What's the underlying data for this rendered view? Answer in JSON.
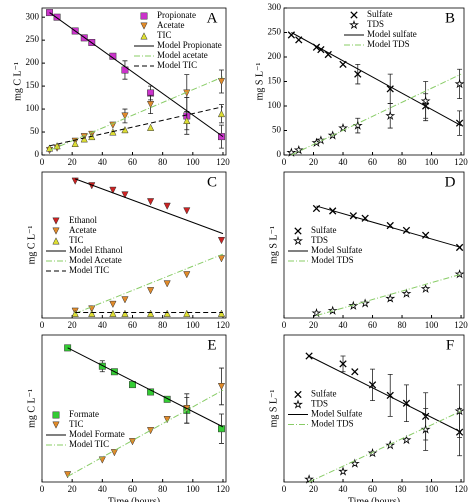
{
  "chart_data": [
    {
      "type": "scatter",
      "label": "A",
      "ylabel": "mg C L⁻¹",
      "xlim": [
        0,
        122
      ],
      "ylim": [
        0,
        320
      ],
      "xticks": [
        0,
        20,
        40,
        60,
        80,
        100,
        120
      ],
      "yticks": [
        0,
        50,
        100,
        150,
        200,
        250,
        300
      ],
      "legend": "upper right",
      "series": [
        {
          "name": "Propionate",
          "color": "#cc33cc",
          "marker": "square",
          "x": [
            5,
            10,
            22,
            28,
            33,
            47,
            55,
            72,
            96,
            119
          ],
          "values": [
            310,
            300,
            270,
            255,
            245,
            215,
            185,
            135,
            85,
            40
          ],
          "errors": [
            null,
            null,
            null,
            null,
            null,
            null,
            20,
            15,
            40,
            25
          ]
        },
        {
          "name": "Acetate",
          "color": "#e08a2a",
          "marker": "triangle-down",
          "x": [
            5,
            10,
            22,
            28,
            33,
            47,
            55,
            72,
            96,
            119
          ],
          "values": [
            10,
            15,
            30,
            40,
            45,
            65,
            85,
            110,
            135,
            160
          ],
          "errors": [
            null,
            null,
            null,
            null,
            null,
            null,
            15,
            20,
            40,
            25
          ]
        },
        {
          "name": "TIC",
          "color": "#dddd33",
          "marker": "triangle-up",
          "x": [
            5,
            10,
            22,
            28,
            33,
            47,
            55,
            72,
            96,
            119
          ],
          "values": [
            15,
            20,
            25,
            35,
            40,
            50,
            55,
            60,
            75,
            90
          ],
          "errors": [
            null,
            null,
            null,
            null,
            null,
            null,
            null,
            null,
            20,
            20
          ]
        },
        {
          "name": "Model Propionate",
          "color": "#000000",
          "line": "solid",
          "x": [
            5,
            120
          ],
          "values": [
            310,
            40
          ]
        },
        {
          "name": "Model acetate",
          "color": "#88cc66",
          "line": "dashdot",
          "x": [
            5,
            120
          ],
          "values": [
            10,
            170
          ]
        },
        {
          "name": "Model TIC",
          "color": "#000000",
          "line": "dashed",
          "x": [
            5,
            120
          ],
          "values": [
            20,
            105
          ]
        }
      ]
    },
    {
      "type": "scatter",
      "label": "B",
      "ylabel": "mg S L⁻¹",
      "xlim": [
        0,
        122
      ],
      "ylim": [
        0,
        300
      ],
      "xticks": [
        0,
        20,
        40,
        60,
        80,
        100,
        120
      ],
      "yticks": [
        0,
        50,
        100,
        150,
        200,
        250,
        300
      ],
      "legend": "upper center",
      "series": [
        {
          "name": "Sulfate",
          "color": "#000000",
          "marker": "x",
          "x": [
            5,
            10,
            22,
            25,
            30,
            40,
            50,
            72,
            96,
            119
          ],
          "values": [
            245,
            235,
            220,
            215,
            205,
            185,
            165,
            135,
            100,
            65
          ],
          "errors": [
            null,
            null,
            null,
            null,
            null,
            null,
            20,
            30,
            25,
            25
          ]
        },
        {
          "name": "TDS",
          "color": "#000000",
          "marker": "star",
          "x": [
            5,
            10,
            22,
            25,
            33,
            40,
            50,
            72,
            96,
            119
          ],
          "values": [
            5,
            10,
            25,
            30,
            40,
            55,
            60,
            80,
            110,
            145
          ],
          "errors": [
            null,
            null,
            null,
            null,
            null,
            null,
            15,
            25,
            40,
            30
          ]
        },
        {
          "name": "Model sulfate",
          "color": "#000000",
          "line": "solid",
          "x": [
            5,
            120
          ],
          "values": [
            250,
            60
          ]
        },
        {
          "name": "Model TDS",
          "color": "#88cc66",
          "line": "dashdot",
          "x": [
            5,
            120
          ],
          "values": [
            0,
            165
          ]
        }
      ]
    },
    {
      "type": "scatter",
      "label": "C",
      "ylabel": "mg C L⁻¹",
      "xlim": [
        0,
        122
      ],
      "ylim": [
        0,
        320
      ],
      "xticks": [
        0,
        20,
        40,
        60,
        80,
        100,
        120
      ],
      "legend": "center left",
      "series": [
        {
          "name": "Ethanol",
          "color": "#cc2222",
          "marker": "triangle-down",
          "x": [
            22,
            33,
            47,
            55,
            72,
            83,
            96,
            119
          ],
          "values": [
            300,
            290,
            280,
            270,
            255,
            245,
            235,
            170
          ]
        },
        {
          "name": "Acetate",
          "color": "#e08a2a",
          "marker": "triangle-down",
          "x": [
            22,
            33,
            47,
            55,
            72,
            83,
            96,
            119
          ],
          "values": [
            15,
            20,
            30,
            40,
            60,
            75,
            95,
            130
          ]
        },
        {
          "name": "TIC",
          "color": "#dddd33",
          "marker": "triangle-up",
          "x": [
            22,
            33,
            47,
            55,
            72,
            83,
            96,
            119
          ],
          "values": [
            10,
            10,
            10,
            10,
            10,
            10,
            10,
            10
          ]
        },
        {
          "name": "Model Ethanol",
          "color": "#000000",
          "line": "solid",
          "x": [
            22,
            120
          ],
          "values": [
            305,
            185
          ]
        },
        {
          "name": "Model Acetate",
          "color": "#88cc66",
          "line": "dashdot",
          "x": [
            22,
            120
          ],
          "values": [
            10,
            140
          ]
        },
        {
          "name": "Model TIC",
          "color": "#000000",
          "line": "dashed",
          "x": [
            22,
            120
          ],
          "values": [
            12,
            12
          ]
        }
      ]
    },
    {
      "type": "scatter",
      "label": "D",
      "ylabel": "mg S L⁻¹",
      "xlim": [
        0,
        122
      ],
      "ylim": [
        0,
        300
      ],
      "xticks": [
        0,
        20,
        40,
        60,
        80,
        100,
        120
      ],
      "legend": "center left",
      "series": [
        {
          "name": "Sulfate",
          "color": "#000000",
          "marker": "x",
          "x": [
            22,
            33,
            47,
            55,
            72,
            83,
            96,
            119
          ],
          "values": [
            225,
            220,
            210,
            205,
            190,
            180,
            170,
            145
          ]
        },
        {
          "name": "TDS",
          "color": "#000000",
          "marker": "star",
          "x": [
            22,
            33,
            47,
            55,
            72,
            83,
            96,
            119
          ],
          "values": [
            10,
            15,
            25,
            30,
            40,
            50,
            60,
            90
          ]
        },
        {
          "name": "Model Sulfate",
          "color": "#000000",
          "line": "solid",
          "x": [
            22,
            120
          ],
          "values": [
            230,
            145
          ]
        },
        {
          "name": "Model TDS",
          "color": "#88cc66",
          "line": "dashdot",
          "x": [
            22,
            120
          ],
          "values": [
            5,
            90
          ]
        }
      ]
    },
    {
      "type": "scatter",
      "label": "E",
      "ylabel": "mg C L⁻¹",
      "xlabel": "Time (hours)",
      "xlim": [
        0,
        122
      ],
      "ylim": [
        0,
        400
      ],
      "xticks": [
        0,
        20,
        40,
        60,
        80,
        100,
        120
      ],
      "legend": "lower left",
      "series": [
        {
          "name": "Formate",
          "color": "#33cc33",
          "marker": "square",
          "x": [
            17,
            40,
            48,
            60,
            72,
            83,
            96,
            119
          ],
          "values": [
            365,
            315,
            300,
            265,
            245,
            225,
            195,
            145
          ],
          "errors": [
            null,
            15,
            null,
            null,
            null,
            null,
            35,
            40
          ]
        },
        {
          "name": "TIC",
          "color": "#e08a2a",
          "marker": "triangle-down",
          "x": [
            17,
            40,
            48,
            60,
            72,
            83,
            96,
            119
          ],
          "values": [
            20,
            60,
            80,
            110,
            140,
            170,
            200,
            260
          ],
          "errors": [
            null,
            null,
            null,
            null,
            null,
            null,
            40,
            50
          ]
        },
        {
          "name": "Model Formate",
          "color": "#000000",
          "line": "solid",
          "x": [
            17,
            120
          ],
          "values": [
            365,
            150
          ]
        },
        {
          "name": "Model TIC",
          "color": "#88cc66",
          "line": "dashdot",
          "x": [
            17,
            120
          ],
          "values": [
            15,
            250
          ]
        }
      ]
    },
    {
      "type": "scatter",
      "label": "F",
      "ylabel": "mg S L⁻¹",
      "xlabel": "Time (hours)",
      "xlim": [
        0,
        122
      ],
      "ylim": [
        0,
        280
      ],
      "xticks": [
        0,
        20,
        40,
        60,
        80,
        100,
        120
      ],
      "legend": "center left",
      "series": [
        {
          "name": "Sulfate",
          "color": "#000000",
          "marker": "x",
          "x": [
            17,
            40,
            48,
            60,
            72,
            83,
            96,
            119
          ],
          "values": [
            240,
            225,
            210,
            185,
            165,
            150,
            125,
            95
          ],
          "errors": [
            null,
            15,
            null,
            30,
            40,
            35,
            45,
            45
          ]
        },
        {
          "name": "TDS",
          "color": "#000000",
          "marker": "star",
          "x": [
            17,
            40,
            48,
            60,
            72,
            83,
            96,
            119
          ],
          "values": [
            5,
            20,
            35,
            55,
            70,
            80,
            100,
            135
          ],
          "errors": [
            null,
            null,
            null,
            null,
            null,
            null,
            40,
            50
          ]
        },
        {
          "name": "Model Sulfate",
          "color": "#000000",
          "line": "solid",
          "x": [
            17,
            120
          ],
          "values": [
            240,
            95
          ]
        },
        {
          "name": "Model TDS",
          "color": "#88cc66",
          "line": "dashdot",
          "x": [
            17,
            120
          ],
          "values": [
            0,
            135
          ]
        }
      ]
    }
  ]
}
